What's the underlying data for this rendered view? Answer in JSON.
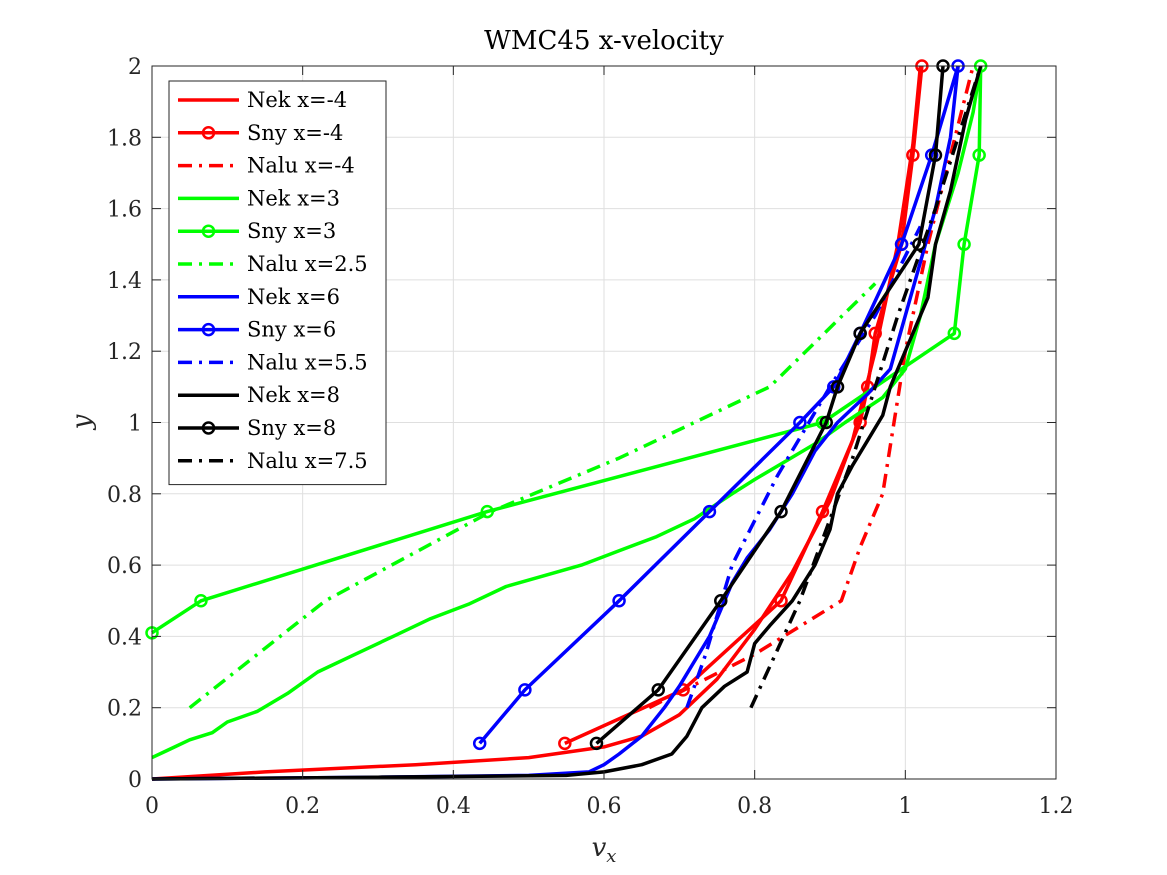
{
  "chart_data": {
    "type": "line",
    "title": "WMC45 x-velocity",
    "xlabel": "v",
    "xlabel_sub": "x",
    "ylabel": "y",
    "xlim": [
      0,
      1.2
    ],
    "ylim": [
      0,
      2
    ],
    "xticks": [
      0,
      0.2,
      0.4,
      0.6,
      0.8,
      1,
      1.2
    ],
    "yticks": [
      0,
      0.2,
      0.4,
      0.6,
      0.8,
      1,
      1.2,
      1.4,
      1.6,
      1.8,
      2
    ],
    "xtick_labels": [
      "0",
      "0.2",
      "0.4",
      "0.6",
      "0.8",
      "1",
      "1.2"
    ],
    "ytick_labels": [
      "0",
      "0.2",
      "0.4",
      "0.6",
      "0.8",
      "1",
      "1.2",
      "1.4",
      "1.6",
      "1.8",
      "2"
    ],
    "grid": true,
    "legend_position": "top-left",
    "series": [
      {
        "name": "Nek x=-4",
        "color": "#ff0000",
        "style": "solid",
        "marker": false,
        "x": [
          0,
          0.15,
          0.35,
          0.5,
          0.6,
          0.65,
          0.7,
          0.75,
          0.8,
          0.85,
          0.9,
          0.93,
          0.96,
          0.99,
          1.01,
          1.02
        ],
        "y": [
          0,
          0.02,
          0.04,
          0.06,
          0.09,
          0.12,
          0.18,
          0.28,
          0.42,
          0.58,
          0.78,
          0.95,
          1.2,
          1.5,
          1.78,
          2.0
        ]
      },
      {
        "name": "Sny x=-4",
        "color": "#ff0000",
        "style": "solid",
        "marker": true,
        "x": [
          0.548,
          0.705,
          0.835,
          0.89,
          0.94,
          0.95,
          0.96,
          0.995,
          1.01,
          1.022
        ],
        "y": [
          0.1,
          0.25,
          0.5,
          0.75,
          1.0,
          1.1,
          1.25,
          1.5,
          1.75,
          2.0
        ]
      },
      {
        "name": "Nalu x=-4",
        "color": "#ff0000",
        "style": "dashdot",
        "marker": false,
        "x": [
          0.66,
          0.8,
          0.915,
          0.94,
          0.97,
          0.985,
          1.0,
          1.03,
          1.06,
          1.09
        ],
        "y": [
          0.2,
          0.35,
          0.5,
          0.65,
          0.8,
          1.0,
          1.2,
          1.5,
          1.75,
          2.0
        ]
      },
      {
        "name": "Nek x=3",
        "color": "#00ff00",
        "style": "solid",
        "marker": false,
        "x": [
          0,
          0.02,
          0.05,
          0.08,
          0.1,
          0.14,
          0.18,
          0.22,
          0.27,
          0.32,
          0.37,
          0.42,
          0.47,
          0.52,
          0.57,
          0.62,
          0.67,
          0.72,
          0.77,
          0.8,
          0.84,
          0.88,
          0.92,
          0.97,
          1.0,
          1.02,
          1.04,
          1.07,
          1.09,
          1.1
        ],
        "y": [
          0.06,
          0.08,
          0.11,
          0.13,
          0.16,
          0.19,
          0.24,
          0.3,
          0.35,
          0.4,
          0.45,
          0.49,
          0.54,
          0.57,
          0.6,
          0.64,
          0.68,
          0.73,
          0.8,
          0.84,
          0.89,
          0.94,
          1.0,
          1.07,
          1.15,
          1.3,
          1.5,
          1.7,
          1.87,
          2.0
        ]
      },
      {
        "name": "Sny x=3",
        "color": "#00ff00",
        "style": "solid",
        "marker": true,
        "x": [
          0,
          0.065,
          0.445,
          0.89,
          1.065,
          1.078,
          1.098,
          1.1
        ],
        "y": [
          0.41,
          0.5,
          0.75,
          1.0,
          1.25,
          1.5,
          1.75,
          2.0
        ]
      },
      {
        "name": "Nalu x=2.5",
        "color": "#00ff00",
        "style": "dashdot",
        "marker": false,
        "x": [
          0.05,
          0.23,
          0.45,
          0.62,
          0.82,
          0.96
        ],
        "y": [
          0.2,
          0.5,
          0.75,
          0.9,
          1.1,
          1.39
        ]
      },
      {
        "name": "Nek x=6",
        "color": "#0000ff",
        "style": "solid",
        "marker": false,
        "x": [
          0,
          0.3,
          0.5,
          0.58,
          0.6,
          0.62,
          0.65,
          0.68,
          0.7,
          0.74,
          0.77,
          0.79,
          0.82,
          0.85,
          0.88,
          0.91,
          0.95,
          0.98,
          1.0,
          1.02,
          1.04,
          1.06,
          1.07
        ],
        "y": [
          0,
          0.005,
          0.01,
          0.02,
          0.04,
          0.07,
          0.12,
          0.2,
          0.26,
          0.4,
          0.55,
          0.62,
          0.7,
          0.8,
          0.92,
          1.0,
          1.08,
          1.15,
          1.3,
          1.45,
          1.6,
          1.8,
          2.0
        ]
      },
      {
        "name": "Sny x=6",
        "color": "#0000ff",
        "style": "solid",
        "marker": true,
        "x": [
          0.435,
          0.495,
          0.62,
          0.74,
          0.86,
          0.905,
          0.94,
          0.995,
          1.035,
          1.07
        ],
        "y": [
          0.1,
          0.25,
          0.5,
          0.75,
          1.0,
          1.1,
          1.25,
          1.5,
          1.75,
          2.0
        ]
      },
      {
        "name": "Nalu x=5.5",
        "color": "#0000ff",
        "style": "dashdot",
        "marker": false,
        "x": [
          0.71,
          0.735,
          0.77,
          0.83,
          0.9,
          0.96,
          1.02
        ],
        "y": [
          0.2,
          0.35,
          0.6,
          0.85,
          1.1,
          1.3,
          1.55
        ]
      },
      {
        "name": "Nek x=8",
        "color": "#000000",
        "style": "solid",
        "marker": false,
        "x": [
          0,
          0.3,
          0.55,
          0.6,
          0.65,
          0.69,
          0.71,
          0.73,
          0.76,
          0.79,
          0.8,
          0.82,
          0.85,
          0.88,
          0.9,
          0.91,
          0.93,
          0.95,
          0.97,
          0.98,
          1.0,
          1.03,
          1.04,
          1.06,
          1.08,
          1.1
        ],
        "y": [
          0,
          0.005,
          0.01,
          0.02,
          0.04,
          0.07,
          0.12,
          0.2,
          0.26,
          0.3,
          0.38,
          0.43,
          0.5,
          0.6,
          0.7,
          0.8,
          0.88,
          0.95,
          1.02,
          1.1,
          1.2,
          1.35,
          1.5,
          1.65,
          1.85,
          2.0
        ]
      },
      {
        "name": "Sny x=8",
        "color": "#000000",
        "style": "solid",
        "marker": true,
        "x": [
          0.59,
          0.672,
          0.755,
          0.835,
          0.895,
          0.91,
          0.94,
          1.018,
          1.04,
          1.05
        ],
        "y": [
          0.1,
          0.25,
          0.5,
          0.75,
          1.0,
          1.1,
          1.25,
          1.5,
          1.75,
          2.0
        ]
      },
      {
        "name": "Nalu x=7.5",
        "color": "#000000",
        "style": "dashdot",
        "marker": false,
        "x": [
          0.795,
          0.86,
          0.93,
          0.99,
          1.04,
          1.1
        ],
        "y": [
          0.2,
          0.5,
          0.9,
          1.3,
          1.6,
          2.0
        ]
      }
    ]
  }
}
